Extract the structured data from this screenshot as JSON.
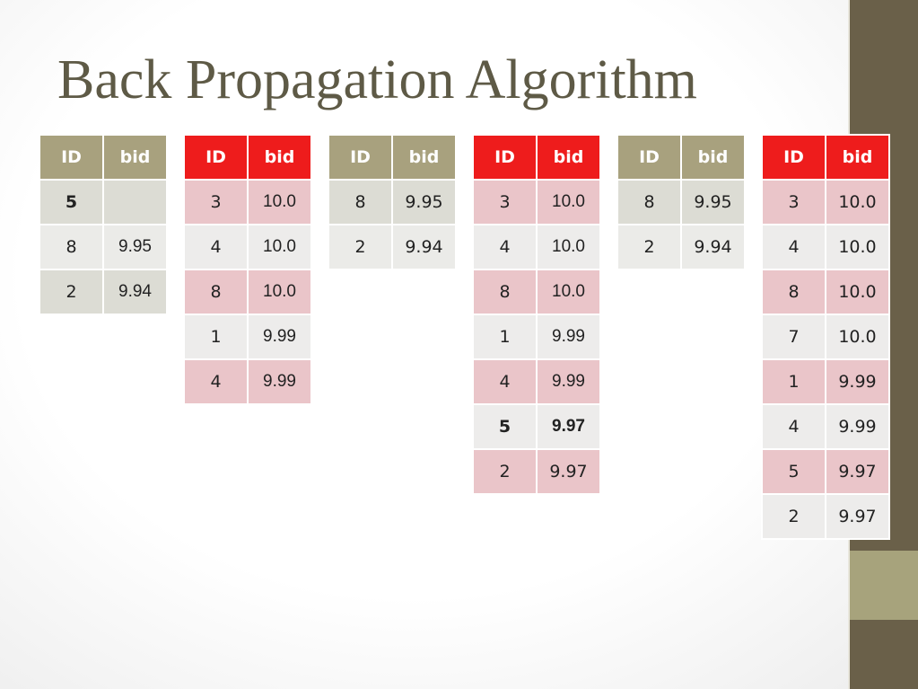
{
  "slide": {
    "title": "Back Propagation Algorithm"
  },
  "tables": [
    {
      "headers": [
        "ID",
        "bid"
      ],
      "rows": [
        [
          "5",
          ""
        ],
        [
          "8",
          "9.95"
        ],
        [
          "2",
          "9.94"
        ]
      ]
    },
    {
      "headers": [
        "ID",
        "bid"
      ],
      "rows": [
        [
          "3",
          "10.0"
        ],
        [
          "4",
          "10.0"
        ],
        [
          "8",
          "10.0"
        ],
        [
          "1",
          "9.99"
        ],
        [
          "4",
          "9.99"
        ]
      ]
    },
    {
      "headers": [
        "ID",
        "bid"
      ],
      "rows": [
        [
          "8",
          "9.95"
        ],
        [
          "2",
          "9.94"
        ]
      ]
    },
    {
      "headers": [
        "ID",
        "bid"
      ],
      "rows": [
        [
          "3",
          "10.0"
        ],
        [
          "4",
          "10.0"
        ],
        [
          "8",
          "10.0"
        ],
        [
          "1",
          "9.99"
        ],
        [
          "4",
          "9.99"
        ],
        [
          "5",
          "9.97"
        ],
        [
          "2",
          "9.97"
        ]
      ]
    },
    {
      "headers": [
        "ID",
        "bid"
      ],
      "rows": [
        [
          "8",
          "9.95"
        ],
        [
          "2",
          "9.94"
        ]
      ]
    },
    {
      "headers": [
        "ID",
        "bid"
      ],
      "rows": [
        [
          "3",
          "10.0"
        ],
        [
          "4",
          "10.0"
        ],
        [
          "8",
          "10.0"
        ],
        [
          "7",
          "10.0"
        ],
        [
          "1",
          "9.99"
        ],
        [
          "4",
          "9.99"
        ],
        [
          "5",
          "9.97"
        ],
        [
          "2",
          "9.97"
        ]
      ]
    }
  ],
  "colors": {
    "title": "#5e5a46",
    "olive_header": "#a8a17e",
    "red_header": "#ee1c1c",
    "pink_row": "#eac5c9",
    "side_bar": "#6a6049",
    "side_accent": "#a7a37c"
  }
}
